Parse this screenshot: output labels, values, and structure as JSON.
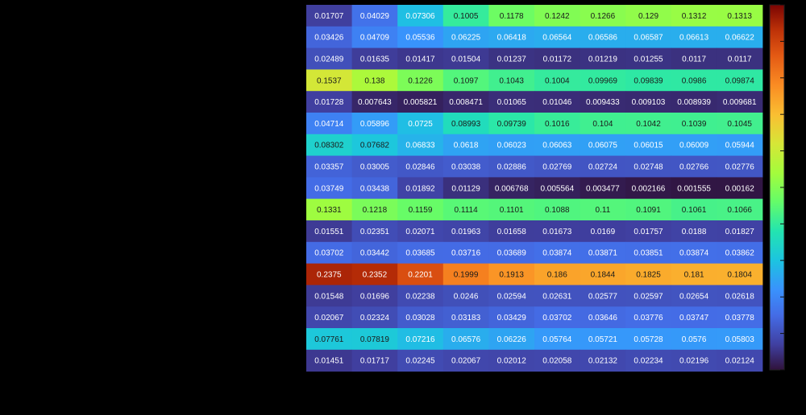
{
  "chart_data": {
    "type": "heatmap",
    "title": "",
    "xlabel": "",
    "ylabel": "",
    "colormap": "turbo",
    "color_range": [
      0.0,
      0.25
    ],
    "colorbar": {
      "visible": true,
      "placement": "right"
    },
    "grid": false,
    "rows": [
      [
        "0.01707",
        "0.04029",
        "0.07306",
        "0.1005",
        "0.1178",
        "0.1242",
        "0.1266",
        "0.129",
        "0.1312",
        "0.1313"
      ],
      [
        "0.03426",
        "0.04709",
        "0.05536",
        "0.06225",
        "0.06418",
        "0.06564",
        "0.06586",
        "0.06587",
        "0.06613",
        "0.06622"
      ],
      [
        "0.02489",
        "0.01635",
        "0.01417",
        "0.01504",
        "0.01237",
        "0.01172",
        "0.01219",
        "0.01255",
        "0.0117",
        "0.0117"
      ],
      [
        "0.1537",
        "0.138",
        "0.1226",
        "0.1097",
        "0.1043",
        "0.1004",
        "0.09969",
        "0.09839",
        "0.0986",
        "0.09874"
      ],
      [
        "0.01728",
        "0.007643",
        "0.005821",
        "0.008471",
        "0.01065",
        "0.01046",
        "0.009433",
        "0.009103",
        "0.008939",
        "0.009681"
      ],
      [
        "0.04714",
        "0.05896",
        "0.0725",
        "0.08993",
        "0.09739",
        "0.1016",
        "0.104",
        "0.1042",
        "0.1039",
        "0.1045"
      ],
      [
        "0.08302",
        "0.07682",
        "0.06833",
        "0.0618",
        "0.06023",
        "0.06063",
        "0.06075",
        "0.06015",
        "0.06009",
        "0.05944"
      ],
      [
        "0.03357",
        "0.03005",
        "0.02846",
        "0.03038",
        "0.02886",
        "0.02769",
        "0.02724",
        "0.02748",
        "0.02766",
        "0.02776"
      ],
      [
        "0.03749",
        "0.03438",
        "0.01892",
        "0.01129",
        "0.006768",
        "0.005564",
        "0.003477",
        "0.002166",
        "0.001555",
        "0.00162"
      ],
      [
        "0.1331",
        "0.1218",
        "0.1159",
        "0.1114",
        "0.1101",
        "0.1088",
        "0.11",
        "0.1091",
        "0.1061",
        "0.1066"
      ],
      [
        "0.01551",
        "0.02351",
        "0.02071",
        "0.01963",
        "0.01658",
        "0.01673",
        "0.0169",
        "0.01757",
        "0.0188",
        "0.01827"
      ],
      [
        "0.03702",
        "0.03442",
        "0.03685",
        "0.03716",
        "0.03689",
        "0.03874",
        "0.03871",
        "0.03851",
        "0.03874",
        "0.03862"
      ],
      [
        "0.2375",
        "0.2352",
        "0.2201",
        "0.1999",
        "0.1913",
        "0.186",
        "0.1844",
        "0.1825",
        "0.181",
        "0.1804"
      ],
      [
        "0.01548",
        "0.01696",
        "0.02238",
        "0.0246",
        "0.02594",
        "0.02631",
        "0.02577",
        "0.02597",
        "0.02654",
        "0.02618"
      ],
      [
        "0.02067",
        "0.02324",
        "0.03028",
        "0.03183",
        "0.03429",
        "0.03702",
        "0.03646",
        "0.03776",
        "0.03747",
        "0.03778"
      ],
      [
        "0.07761",
        "0.07819",
        "0.07216",
        "0.06576",
        "0.06226",
        "0.05764",
        "0.05721",
        "0.05728",
        "0.0576",
        "0.05803"
      ],
      [
        "0.01451",
        "0.01717",
        "0.02245",
        "0.02067",
        "0.02012",
        "0.02058",
        "0.02132",
        "0.02234",
        "0.02196",
        "0.02124"
      ]
    ]
  }
}
